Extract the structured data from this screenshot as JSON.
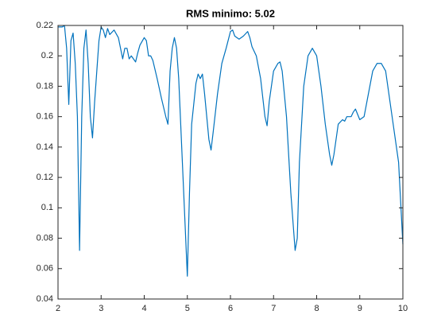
{
  "chart_data": {
    "type": "line",
    "title": "RMS minimo: 5.02",
    "color": "#0072bd",
    "x": [
      2.0,
      2.1,
      2.15,
      2.2,
      2.25,
      2.3,
      2.35,
      2.4,
      2.45,
      2.5,
      2.55,
      2.6,
      2.65,
      2.7,
      2.75,
      2.8,
      2.85,
      2.9,
      2.95,
      3.0,
      3.05,
      3.1,
      3.15,
      3.2,
      3.3,
      3.4,
      3.5,
      3.55,
      3.6,
      3.65,
      3.7,
      3.8,
      3.85,
      3.9,
      4.0,
      4.05,
      4.1,
      4.15,
      4.2,
      4.3,
      4.4,
      4.5,
      4.55,
      4.6,
      4.65,
      4.7,
      4.75,
      4.8,
      4.9,
      5.0,
      5.05,
      5.1,
      5.2,
      5.25,
      5.3,
      5.35,
      5.4,
      5.5,
      5.55,
      5.6,
      5.7,
      5.8,
      5.9,
      6.0,
      6.05,
      6.1,
      6.2,
      6.3,
      6.4,
      6.45,
      6.5,
      6.6,
      6.7,
      6.8,
      6.85,
      6.9,
      7.0,
      7.1,
      7.15,
      7.2,
      7.3,
      7.4,
      7.5,
      7.55,
      7.6,
      7.7,
      7.8,
      7.9,
      8.0,
      8.1,
      8.2,
      8.3,
      8.35,
      8.4,
      8.5,
      8.6,
      8.65,
      8.7,
      8.8,
      8.85,
      8.9,
      9.0,
      9.1,
      9.2,
      9.3,
      9.4,
      9.5,
      9.6,
      9.7,
      9.8,
      9.9,
      10.0
    ],
    "values": [
      0.219,
      0.219,
      0.22,
      0.205,
      0.168,
      0.21,
      0.215,
      0.195,
      0.16,
      0.072,
      0.16,
      0.205,
      0.217,
      0.195,
      0.16,
      0.146,
      0.17,
      0.19,
      0.21,
      0.219,
      0.217,
      0.212,
      0.218,
      0.214,
      0.217,
      0.212,
      0.198,
      0.205,
      0.205,
      0.198,
      0.2,
      0.196,
      0.202,
      0.207,
      0.212,
      0.21,
      0.2,
      0.2,
      0.197,
      0.185,
      0.172,
      0.16,
      0.155,
      0.19,
      0.205,
      0.212,
      0.205,
      0.185,
      0.12,
      0.055,
      0.11,
      0.155,
      0.182,
      0.188,
      0.185,
      0.188,
      0.175,
      0.145,
      0.138,
      0.15,
      0.175,
      0.195,
      0.205,
      0.216,
      0.217,
      0.213,
      0.211,
      0.213,
      0.216,
      0.212,
      0.206,
      0.2,
      0.185,
      0.16,
      0.154,
      0.17,
      0.19,
      0.195,
      0.196,
      0.19,
      0.16,
      0.11,
      0.072,
      0.08,
      0.13,
      0.18,
      0.2,
      0.205,
      0.2,
      0.18,
      0.155,
      0.135,
      0.128,
      0.135,
      0.155,
      0.158,
      0.157,
      0.16,
      0.16,
      0.163,
      0.165,
      0.158,
      0.16,
      0.175,
      0.19,
      0.195,
      0.195,
      0.19,
      0.17,
      0.15,
      0.13,
      0.076
    ],
    "xlim": [
      2,
      10
    ],
    "xticks": [
      2,
      3,
      4,
      5,
      6,
      7,
      8,
      9,
      10
    ],
    "ylim": [
      0.04,
      0.22
    ],
    "yticks": [
      0.04,
      0.06,
      0.08,
      0.1,
      0.12,
      0.14,
      0.16,
      0.18,
      0.2,
      0.22
    ],
    "grid": false
  }
}
